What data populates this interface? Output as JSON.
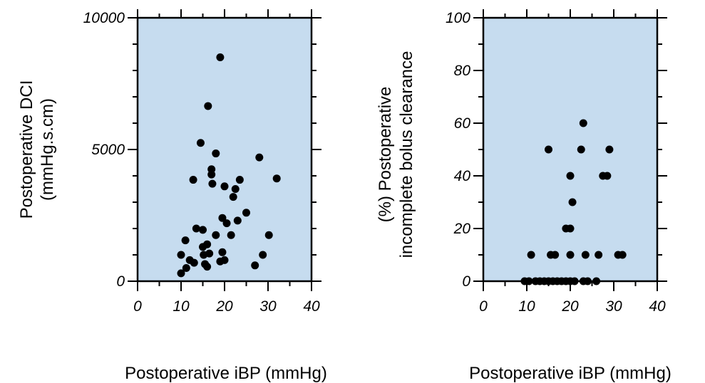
{
  "chart_data": [
    {
      "type": "scatter",
      "title": "",
      "xlabel": "Postoperative iBP (mmHg)",
      "ylabel_lines": [
        "Postoperative DCI",
        "(mmHg.s.cm)"
      ],
      "xlim": [
        0,
        40
      ],
      "ylim": [
        0,
        10000
      ],
      "xticks": [
        0,
        10,
        20,
        30,
        40
      ],
      "yticks": [
        0,
        5000,
        10000
      ],
      "grid": false,
      "points": [
        {
          "x": 10.0,
          "y": 300
        },
        {
          "x": 10.0,
          "y": 1000
        },
        {
          "x": 11.2,
          "y": 500
        },
        {
          "x": 11.0,
          "y": 1550
        },
        {
          "x": 12.0,
          "y": 800
        },
        {
          "x": 13.0,
          "y": 700
        },
        {
          "x": 12.8,
          "y": 3850
        },
        {
          "x": 13.5,
          "y": 2000
        },
        {
          "x": 14.5,
          "y": 5250
        },
        {
          "x": 15.0,
          "y": 1300
        },
        {
          "x": 15.0,
          "y": 1950
        },
        {
          "x": 15.2,
          "y": 1000
        },
        {
          "x": 15.5,
          "y": 650
        },
        {
          "x": 16.0,
          "y": 1400
        },
        {
          "x": 16.0,
          "y": 550
        },
        {
          "x": 16.2,
          "y": 6650
        },
        {
          "x": 16.5,
          "y": 1050
        },
        {
          "x": 17.0,
          "y": 4250
        },
        {
          "x": 17.0,
          "y": 4050
        },
        {
          "x": 17.2,
          "y": 3700
        },
        {
          "x": 18.0,
          "y": 4850
        },
        {
          "x": 18.0,
          "y": 1750
        },
        {
          "x": 19.0,
          "y": 8500
        },
        {
          "x": 19.0,
          "y": 750
        },
        {
          "x": 19.5,
          "y": 1100
        },
        {
          "x": 19.5,
          "y": 2400
        },
        {
          "x": 20.0,
          "y": 3600
        },
        {
          "x": 20.0,
          "y": 800
        },
        {
          "x": 20.5,
          "y": 2200
        },
        {
          "x": 21.5,
          "y": 1750
        },
        {
          "x": 22.0,
          "y": 3200
        },
        {
          "x": 22.5,
          "y": 3500
        },
        {
          "x": 23.0,
          "y": 2300
        },
        {
          "x": 23.5,
          "y": 3850
        },
        {
          "x": 25.0,
          "y": 2600
        },
        {
          "x": 27.0,
          "y": 600
        },
        {
          "x": 28.0,
          "y": 4700
        },
        {
          "x": 28.8,
          "y": 1000
        },
        {
          "x": 30.2,
          "y": 1750
        },
        {
          "x": 32.0,
          "y": 3900
        }
      ]
    },
    {
      "type": "scatter",
      "title": "",
      "xlabel": "Postoperative iBP (mmHg)",
      "ylabel_lines": [
        "(%) Postoperative",
        "incomplete bolus clearance"
      ],
      "xlim": [
        0,
        40
      ],
      "ylim": [
        0,
        100
      ],
      "xticks": [
        0,
        10,
        20,
        30,
        40
      ],
      "yticks": [
        0,
        20,
        40,
        60,
        80,
        100
      ],
      "grid": false,
      "points": [
        {
          "x": 9.5,
          "y": 0
        },
        {
          "x": 10.5,
          "y": 0
        },
        {
          "x": 12.0,
          "y": 0
        },
        {
          "x": 13.0,
          "y": 0
        },
        {
          "x": 14.0,
          "y": 0
        },
        {
          "x": 15.0,
          "y": 0
        },
        {
          "x": 16.0,
          "y": 0
        },
        {
          "x": 17.0,
          "y": 0
        },
        {
          "x": 18.0,
          "y": 0
        },
        {
          "x": 19.0,
          "y": 0
        },
        {
          "x": 20.0,
          "y": 0
        },
        {
          "x": 21.0,
          "y": 0
        },
        {
          "x": 23.0,
          "y": 0
        },
        {
          "x": 24.0,
          "y": 0
        },
        {
          "x": 26.0,
          "y": 0
        },
        {
          "x": 11.0,
          "y": 10
        },
        {
          "x": 15.5,
          "y": 10
        },
        {
          "x": 16.5,
          "y": 10
        },
        {
          "x": 20.0,
          "y": 10
        },
        {
          "x": 23.5,
          "y": 10
        },
        {
          "x": 26.5,
          "y": 10
        },
        {
          "x": 31.0,
          "y": 10
        },
        {
          "x": 32.0,
          "y": 10
        },
        {
          "x": 19.0,
          "y": 20
        },
        {
          "x": 20.0,
          "y": 20
        },
        {
          "x": 20.5,
          "y": 30
        },
        {
          "x": 20.0,
          "y": 40
        },
        {
          "x": 27.5,
          "y": 40
        },
        {
          "x": 28.5,
          "y": 40
        },
        {
          "x": 15.0,
          "y": 50
        },
        {
          "x": 22.5,
          "y": 50
        },
        {
          "x": 29.0,
          "y": 50
        },
        {
          "x": 23.0,
          "y": 60
        }
      ]
    }
  ]
}
